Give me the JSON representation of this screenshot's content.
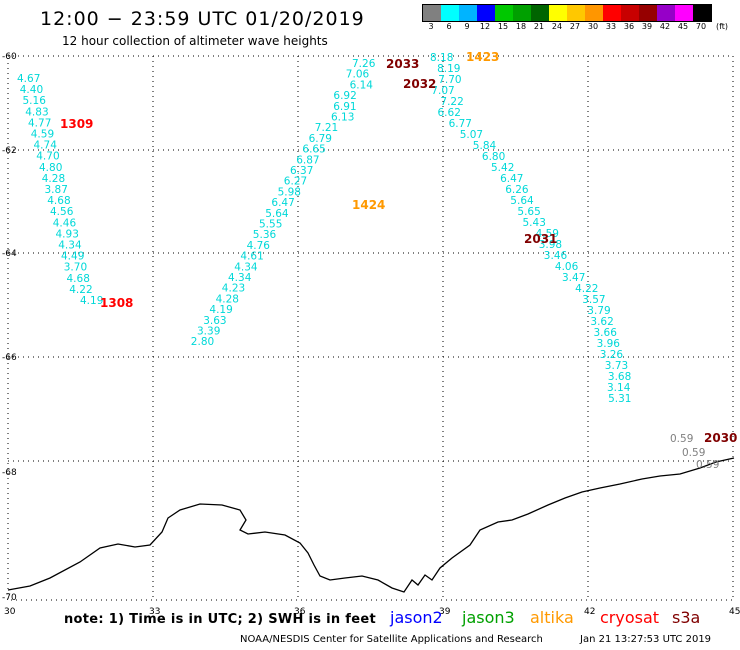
{
  "header": {
    "title": "12:00 − 23:59 UTC 01/20/2019",
    "subtitle": "12 hour collection of altimeter wave heights"
  },
  "color_scale": {
    "labels": [
      "3",
      "6",
      "9",
      "12",
      "15",
      "18",
      "21",
      "24",
      "27",
      "30",
      "33",
      "36",
      "39",
      "42",
      "45",
      "70"
    ],
    "unit": "(ft)",
    "colors": [
      "#808080",
      "#00ffff",
      "#00b4ff",
      "#0000ff",
      "#00c800",
      "#00a000",
      "#006400",
      "#ffff00",
      "#ffc800",
      "#ff9600",
      "#ff0000",
      "#c80000",
      "#960000",
      "#9600c8",
      "#ff00ff",
      "#000000"
    ]
  },
  "axes": {
    "lat_labels": [
      "-60",
      "-62",
      "-64",
      "-66",
      "-68",
      "-70"
    ],
    "lon_labels": [
      "30",
      "33",
      "36",
      "39",
      "42",
      "45"
    ]
  },
  "passes": [
    {
      "id": "1309",
      "color": "#ff0000"
    },
    {
      "id": "1308",
      "color": "#ff0000"
    },
    {
      "id": "2033",
      "color": "#800000"
    },
    {
      "id": "2032",
      "color": "#800000"
    },
    {
      "id": "1423",
      "color": "#ff9900"
    },
    {
      "id": "1424",
      "color": "#ff9900"
    },
    {
      "id": "2031",
      "color": "#800000"
    },
    {
      "id": "2030",
      "color": "#800000"
    }
  ],
  "tracks": {
    "west": {
      "color": "#00d8d8",
      "values": [
        "4.67",
        "4.40",
        "5.16",
        "4.83",
        "4.77",
        "4.59",
        "4.74",
        "4.70",
        "4.80",
        "4.28",
        "3.87",
        "4.68",
        "4.56",
        "4.46",
        "4.93",
        "4.34",
        "4.49",
        "3.70",
        "4.68",
        "4.22",
        "4.19"
      ]
    },
    "middle": {
      "color": "#00d8d8",
      "values": [
        "7.26",
        "7.06",
        "6.14",
        "6.92",
        "6.91",
        "6.13",
        "7.21",
        "6.79",
        "6.65",
        "6.87",
        "6.37",
        "6.27",
        "5.98",
        "6.47",
        "5.64",
        "5.55",
        "5.36",
        "4.76",
        "4.61",
        "4.34",
        "4.34",
        "4.23",
        "4.28",
        "4.19",
        "3.63",
        "3.39",
        "2.80"
      ]
    },
    "east": {
      "color": "#00d8d8",
      "values": [
        "8.18",
        "8.19",
        "7.70",
        "7.07",
        "7.22",
        "6.62",
        "6.77",
        "5.07",
        "5.84",
        "6.80",
        "5.42",
        "6.47",
        "6.26",
        "5.64",
        "5.65",
        "5.43",
        "4.59",
        "3.98",
        "3.46",
        "4.06",
        "3.47",
        "4.22",
        "3.57",
        "3.79",
        "3.62",
        "3.66",
        "3.96",
        "3.26",
        "3.73",
        "3.68",
        "3.14",
        "5.31"
      ]
    },
    "grey_tail": {
      "color": "#808080",
      "values": [
        "0.59",
        "0.59",
        "0.59"
      ]
    }
  },
  "footer": {
    "note": "note:  1) Time is in UTC;  2) SWH is in feet",
    "missions": [
      {
        "name": "jason2",
        "color": "#0000ff"
      },
      {
        "name": "jason3",
        "color": "#00a000"
      },
      {
        "name": "altika",
        "color": "#ff9900"
      },
      {
        "name": "cryosat",
        "color": "#ff0000"
      },
      {
        "name": "s3a",
        "color": "#800000"
      }
    ],
    "credit": "NOAA/NESDIS Center for Satellite Applications and Research",
    "timestamp": "Jan 21 13:27:53 UTC 2019"
  }
}
